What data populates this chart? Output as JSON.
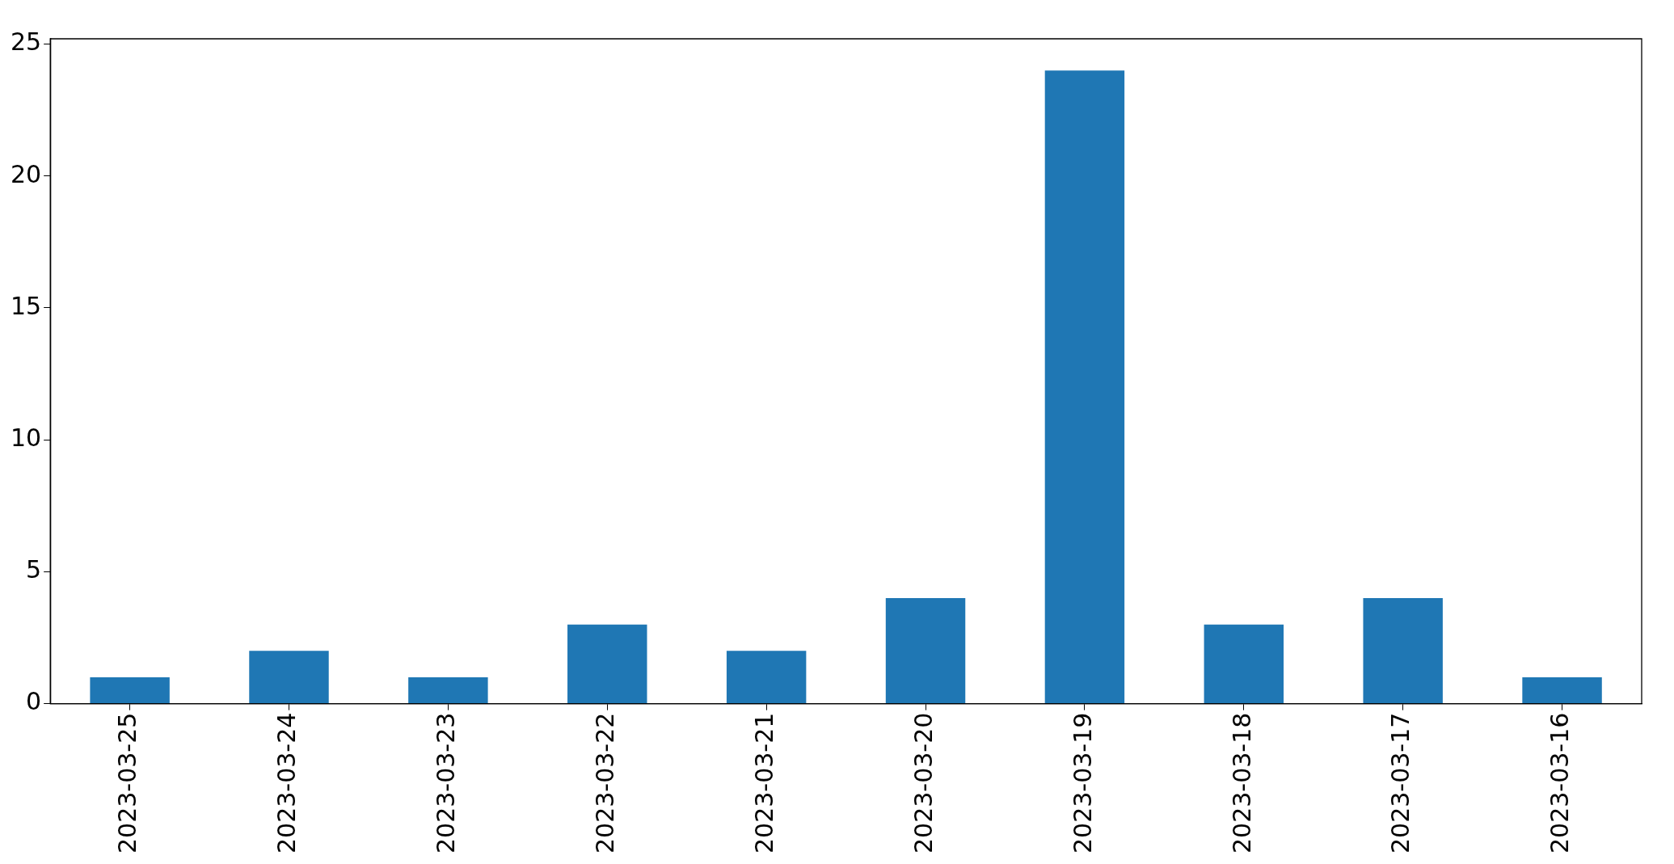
{
  "chart_data": {
    "type": "bar",
    "categories": [
      "2023-03-25",
      "2023-03-24",
      "2023-03-23",
      "2023-03-22",
      "2023-03-21",
      "2023-03-20",
      "2023-03-19",
      "2023-03-18",
      "2023-03-17",
      "2023-03-16"
    ],
    "values": [
      1,
      2,
      1,
      3,
      2,
      4,
      24,
      3,
      4,
      1
    ],
    "color": "#1f77b4",
    "ylim": [
      0,
      25.2
    ],
    "yticks": [
      0,
      5,
      10,
      15,
      20,
      25
    ],
    "grid": false,
    "legend": false
  }
}
